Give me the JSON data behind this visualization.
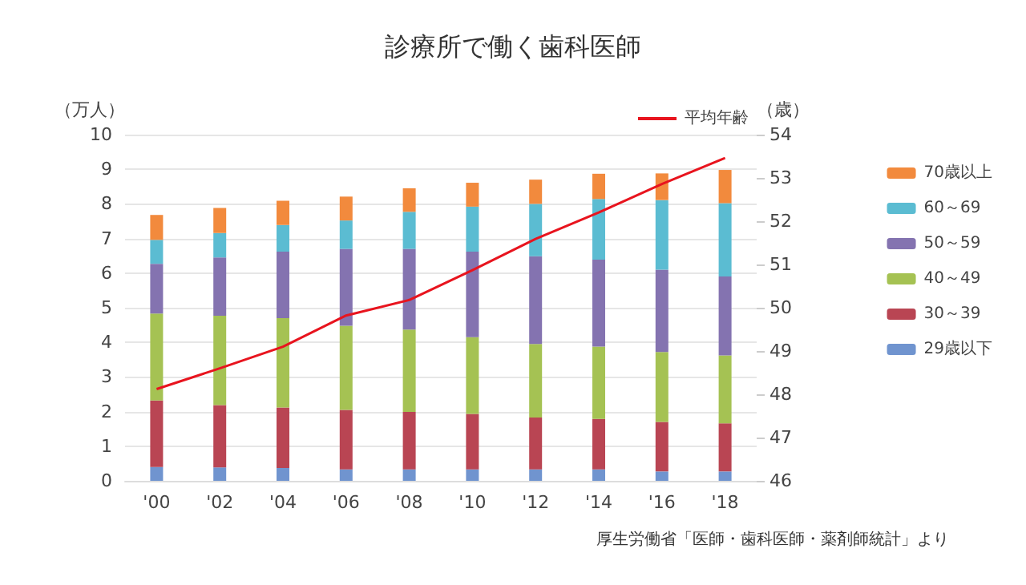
{
  "chart_data": {
    "type": "bar",
    "title": "診療所で働く歯科医師",
    "ylabel": "（万人）",
    "y2label": "（歳）",
    "categories": [
      "'00",
      "'02",
      "'04",
      "'06",
      "'08",
      "'10",
      "'12",
      "'14",
      "'16",
      "'18"
    ],
    "stacked": true,
    "series": [
      {
        "name": "29歳以下",
        "color": "#7094cf",
        "values": [
          0.4,
          0.39,
          0.37,
          0.33,
          0.33,
          0.33,
          0.33,
          0.33,
          0.27,
          0.27
        ]
      },
      {
        "name": "30～39",
        "color": "#b94553",
        "values": [
          1.92,
          1.8,
          1.75,
          1.72,
          1.66,
          1.6,
          1.5,
          1.46,
          1.43,
          1.39
        ]
      },
      {
        "name": "40～49",
        "color": "#a5c253",
        "values": [
          2.51,
          2.58,
          2.58,
          2.43,
          2.38,
          2.22,
          2.12,
          2.09,
          2.02,
          1.96
        ]
      },
      {
        "name": "50～59",
        "color": "#8473b0",
        "values": [
          1.44,
          1.68,
          1.92,
          2.22,
          2.33,
          2.47,
          2.54,
          2.51,
          2.38,
          2.28
        ]
      },
      {
        "name": "60～69",
        "color": "#5bbcd2",
        "values": [
          0.69,
          0.71,
          0.77,
          0.82,
          1.07,
          1.3,
          1.51,
          1.75,
          2.01,
          2.12
        ]
      },
      {
        "name": "70歳以上",
        "color": "#f28a3d",
        "values": [
          0.72,
          0.72,
          0.7,
          0.69,
          0.68,
          0.69,
          0.7,
          0.73,
          0.77,
          0.96
        ]
      },
      {
        "name": "平均年齢",
        "type": "line",
        "axis": "y2",
        "color": "#e8141e",
        "values": [
          48.12,
          48.6,
          49.1,
          49.82,
          50.18,
          50.87,
          51.59,
          52.2,
          52.86,
          53.46
        ]
      }
    ],
    "ylim": [
      0,
      10
    ],
    "yticks": [
      0,
      1,
      2,
      3,
      4,
      5,
      6,
      7,
      8,
      9,
      10
    ],
    "y2lim": [
      46,
      54
    ],
    "y2ticks": [
      46,
      47,
      48,
      49,
      50,
      51,
      52,
      53,
      54
    ],
    "grid": "y",
    "legend": "right",
    "marker": "none",
    "annotations": [
      "厚生労働省「医師・歯科医師・薬剤師統計」より"
    ]
  }
}
